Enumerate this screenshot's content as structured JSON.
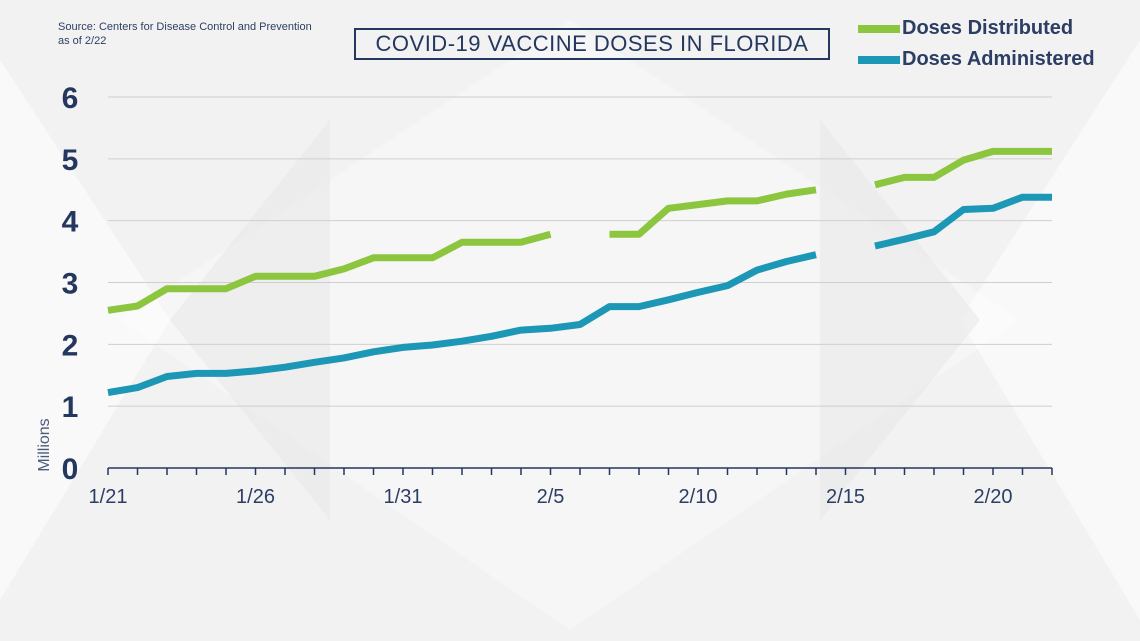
{
  "source_note": [
    "Source: Centers for Disease Control and Prevention",
    "as of 2/22"
  ],
  "title": "COVID-19 VACCINE DOSES IN FLORIDA",
  "colors": {
    "distributed": "#8cc63f",
    "administered": "#1c97b5",
    "axis_text": "#24375e",
    "gridline": "#cfcfcf"
  },
  "chart_data": {
    "type": "line",
    "title": "COVID-19 VACCINE DOSES IN FLORIDA",
    "xlabel": "",
    "ylabel": "Millions",
    "ylim": [
      0,
      6
    ],
    "yticks": [
      0,
      1,
      2,
      3,
      4,
      5,
      6
    ],
    "x": [
      "1/21",
      "1/22",
      "1/23",
      "1/24",
      "1/25",
      "1/26",
      "1/27",
      "1/28",
      "1/29",
      "1/30",
      "1/31",
      "2/1",
      "2/2",
      "2/3",
      "2/4",
      "2/5",
      "2/6",
      "2/7",
      "2/8",
      "2/9",
      "2/10",
      "2/11",
      "2/12",
      "2/13",
      "2/14",
      "2/15",
      "2/16",
      "2/17",
      "2/18",
      "2/19",
      "2/20",
      "2/21",
      "2/22"
    ],
    "xticks": [
      "1/21",
      "1/26",
      "1/31",
      "2/5",
      "2/10",
      "2/15",
      "2/20"
    ],
    "grid": true,
    "legend_position": "top-right",
    "series": [
      {
        "name": "Doses Distributed",
        "values": [
          2.55,
          2.62,
          2.9,
          2.9,
          2.9,
          3.1,
          3.1,
          3.1,
          3.22,
          3.4,
          3.4,
          3.4,
          3.65,
          3.65,
          3.65,
          3.78,
          null,
          3.78,
          3.78,
          4.2,
          4.26,
          4.32,
          4.32,
          4.43,
          4.5,
          null,
          4.58,
          4.7,
          4.7,
          4.98,
          5.12,
          5.12,
          5.12
        ]
      },
      {
        "name": "Doses Administered",
        "values": [
          1.22,
          1.3,
          1.48,
          1.53,
          1.53,
          1.57,
          1.63,
          1.71,
          1.78,
          1.88,
          1.95,
          1.99,
          2.05,
          2.13,
          2.23,
          2.26,
          2.32,
          2.61,
          2.61,
          2.72,
          2.84,
          2.95,
          3.2,
          3.34,
          3.45,
          null,
          3.59,
          3.7,
          3.82,
          4.18,
          4.2,
          4.38,
          4.38
        ]
      }
    ]
  }
}
